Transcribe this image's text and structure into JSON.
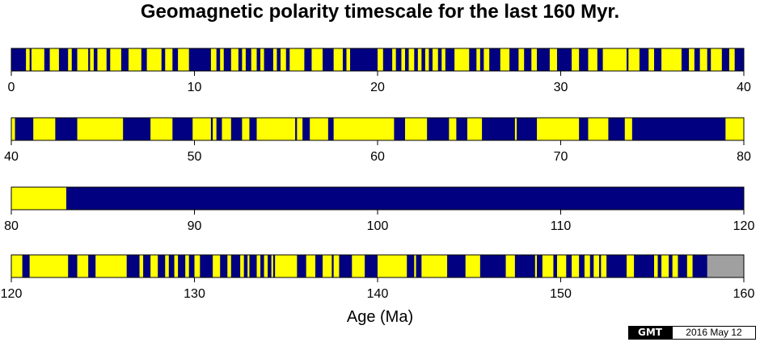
{
  "title": "Geomagnetic polarity timescale for the last 160 Myr.",
  "xlabel": "Age (Ma)",
  "stamp": {
    "logo": "GMT",
    "date": "2016 May 12"
  },
  "colors": {
    "normal": "#000080",
    "reversed": "#ffff00",
    "unknown": "#a0a0a0"
  },
  "chart_data": {
    "type": "timescale",
    "title": "Geomagnetic polarity timescale for the last 160 Myr.",
    "xlabel": "Age (Ma)",
    "range": [
      0,
      160
    ],
    "segment_length": 40,
    "rows": [
      {
        "xlim": [
          0,
          40
        ],
        "ticks": [
          "0",
          "10",
          "20",
          "30",
          "40"
        ]
      },
      {
        "xlim": [
          40,
          80
        ],
        "ticks": [
          "40",
          "50",
          "60",
          "70",
          "80"
        ]
      },
      {
        "xlim": [
          80,
          120
        ],
        "ticks": [
          "80",
          "90",
          "100",
          "110",
          "120"
        ]
      },
      {
        "xlim": [
          120,
          160
        ],
        "ticks": [
          "120",
          "130",
          "140",
          "150",
          "160"
        ]
      }
    ],
    "background_polarity": "normal",
    "reversed_intervals": [
      [
        0.8,
        1.0
      ],
      [
        1.1,
        1.8
      ],
      [
        2.1,
        2.6
      ],
      [
        3.1,
        3.3
      ],
      [
        3.6,
        4.2
      ],
      [
        4.3,
        4.5
      ],
      [
        4.7,
        5.2
      ],
      [
        5.4,
        6.0
      ],
      [
        6.4,
        7.1
      ],
      [
        7.4,
        8.2
      ],
      [
        8.4,
        8.8
      ],
      [
        9.1,
        9.7
      ],
      [
        10.9,
        11.2
      ],
      [
        11.4,
        11.6
      ],
      [
        12.0,
        12.4
      ],
      [
        12.6,
        12.8
      ],
      [
        13.1,
        13.4
      ],
      [
        13.6,
        13.8
      ],
      [
        14.3,
        14.5
      ],
      [
        14.7,
        15.0
      ],
      [
        15.2,
        16.0
      ],
      [
        16.4,
        17.0
      ],
      [
        17.6,
        18.1
      ],
      [
        18.3,
        18.5
      ],
      [
        20.0,
        20.3
      ],
      [
        20.8,
        21.0
      ],
      [
        21.3,
        21.5
      ],
      [
        21.7,
        22.0
      ],
      [
        22.2,
        22.4
      ],
      [
        22.6,
        22.8
      ],
      [
        23.0,
        23.3
      ],
      [
        23.5,
        23.7
      ],
      [
        24.2,
        25.0
      ],
      [
        25.4,
        25.6
      ],
      [
        25.8,
        26.1
      ],
      [
        26.7,
        27.2
      ],
      [
        27.7,
        28.0
      ],
      [
        28.4,
        28.7
      ],
      [
        29.4,
        29.8
      ],
      [
        30.6,
        31.0
      ],
      [
        31.5,
        32.0
      ],
      [
        32.3,
        33.6
      ],
      [
        33.7,
        34.3
      ],
      [
        34.8,
        35.1
      ],
      [
        35.5,
        36.6
      ],
      [
        37.0,
        37.3
      ],
      [
        37.6,
        38.0
      ],
      [
        38.2,
        38.8
      ],
      [
        39.2,
        39.5
      ],
      [
        40.0,
        40.2
      ],
      [
        41.2,
        42.4
      ],
      [
        43.6,
        46.1
      ],
      [
        47.6,
        48.8
      ],
      [
        49.9,
        50.9
      ],
      [
        51.0,
        51.2
      ],
      [
        51.5,
        52.0
      ],
      [
        52.6,
        53.0
      ],
      [
        53.4,
        55.5
      ],
      [
        55.6,
        55.9
      ],
      [
        56.3,
        57.3
      ],
      [
        57.6,
        60.9
      ],
      [
        61.5,
        62.7
      ],
      [
        63.9,
        64.3
      ],
      [
        64.9,
        65.7
      ],
      [
        67.5,
        67.6
      ],
      [
        68.7,
        71.0
      ],
      [
        71.5,
        72.6
      ],
      [
        73.5,
        73.9
      ],
      [
        79.0,
        80.0
      ],
      [
        80.0,
        83.0
      ],
      [
        120.0,
        120.6
      ],
      [
        121.0,
        123.1
      ],
      [
        123.6,
        124.2
      ],
      [
        124.6,
        126.3
      ],
      [
        127.0,
        127.2
      ],
      [
        127.6,
        128.0
      ],
      [
        128.4,
        128.6
      ],
      [
        128.9,
        129.1
      ],
      [
        129.5,
        129.7
      ],
      [
        130.0,
        130.3
      ],
      [
        131.0,
        131.4
      ],
      [
        131.8,
        132.0
      ],
      [
        132.5,
        132.7
      ],
      [
        132.9,
        133.0
      ],
      [
        133.4,
        133.6
      ],
      [
        133.8,
        134.0
      ],
      [
        134.2,
        134.3
      ],
      [
        134.4,
        135.6
      ],
      [
        136.1,
        136.6
      ],
      [
        137.0,
        137.5
      ],
      [
        137.6,
        137.9
      ],
      [
        138.6,
        139.3
      ],
      [
        140.0,
        141.6
      ],
      [
        142.0,
        142.1
      ],
      [
        142.4,
        143.8
      ],
      [
        144.8,
        145.6
      ],
      [
        147.0,
        147.5
      ],
      [
        148.6,
        148.7
      ],
      [
        149.0,
        149.6
      ],
      [
        149.8,
        150.3
      ],
      [
        150.6,
        151.0
      ],
      [
        151.3,
        151.6
      ],
      [
        151.8,
        152.1
      ],
      [
        152.2,
        152.5
      ],
      [
        153.6,
        154.0
      ],
      [
        155.1,
        155.3
      ],
      [
        155.5,
        155.9
      ],
      [
        156.1,
        156.4
      ],
      [
        156.9,
        157.2
      ]
    ],
    "unknown_intervals": [
      [
        158.0,
        160.0
      ]
    ]
  }
}
